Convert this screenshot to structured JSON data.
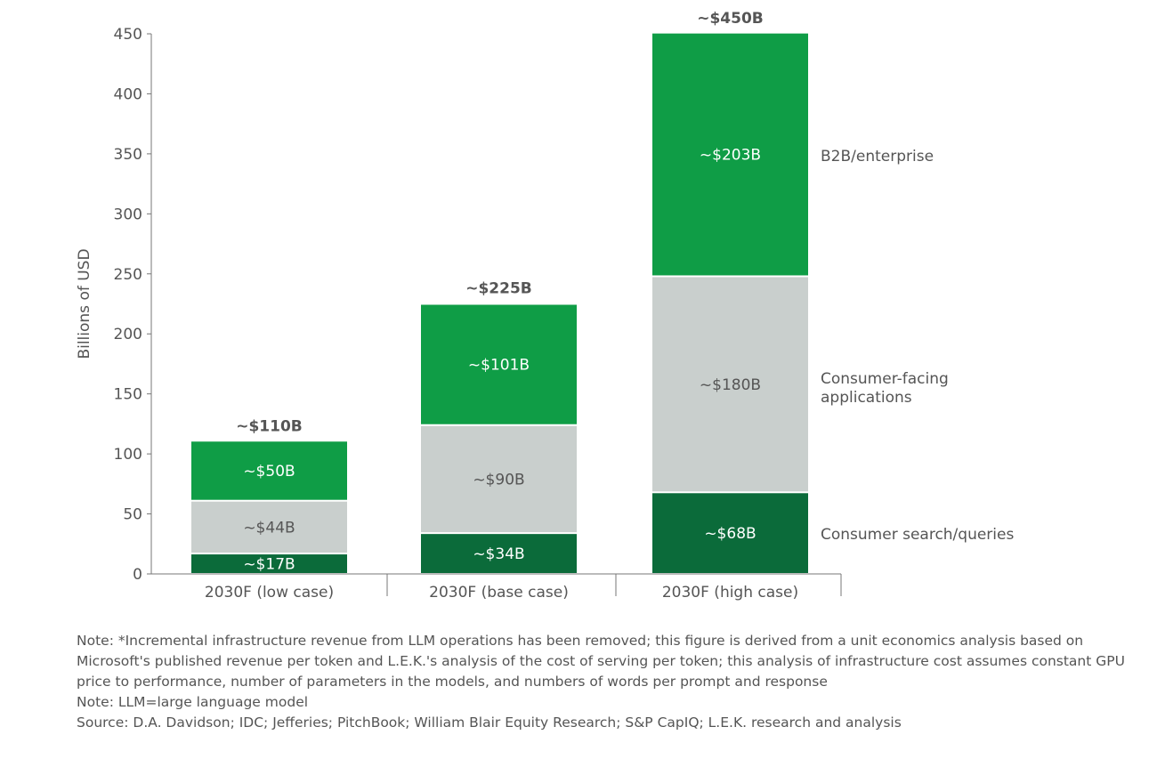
{
  "chart_data": {
    "type": "bar",
    "stacked": true,
    "ylabel": "Billions of USD",
    "ylim": [
      0,
      450
    ],
    "yticks": [
      0,
      50,
      100,
      150,
      200,
      250,
      300,
      350,
      400,
      450
    ],
    "grid": false,
    "categories": [
      "2030F (low case)",
      "2030F (base case)",
      "2030F (high case)"
    ],
    "totals": [
      110,
      225,
      450
    ],
    "total_labels": [
      "~$110B",
      "~$225B",
      "~$450B"
    ],
    "series": [
      {
        "name": "Consumer search/queries",
        "color": "#0b6b3a",
        "text_color": "#ffffff",
        "values": [
          17,
          34,
          68
        ],
        "labels": [
          "~$17B",
          "~$34B",
          "~$68B"
        ]
      },
      {
        "name": "Consumer-facing applications",
        "color": "#c9cfcd",
        "text_color": "#555555",
        "values": [
          44,
          90,
          180
        ],
        "labels": [
          "~$44B",
          "~$90B",
          "~$180B"
        ]
      },
      {
        "name": "B2B/enterprise",
        "color": "#0f9d46",
        "text_color": "#ffffff",
        "values": [
          50,
          101,
          203
        ],
        "labels": [
          "~$50B",
          "~$101B",
          "~$203B"
        ]
      }
    ],
    "legend": {
      "placement": "right",
      "labels": [
        "B2B/enterprise",
        "Consumer-facing\napplications",
        "Consumer search/queries"
      ]
    }
  },
  "notes": [
    "Note: *Incremental infrastructure revenue from LLM operations has been removed; this figure is derived from a unit economics analysis based on Microsoft's published revenue per token and L.E.K.'s analysis of the cost of serving per token; this analysis of infrastructure cost assumes constant GPU price to performance, number of parameters in the models, and numbers of words per prompt and response",
    "Note: LLM=large language model",
    "Source: D.A. Davidson; IDC; Jefferies; PitchBook; William Blair Equity Research; S&P CapIQ; L.E.K. research and analysis"
  ]
}
